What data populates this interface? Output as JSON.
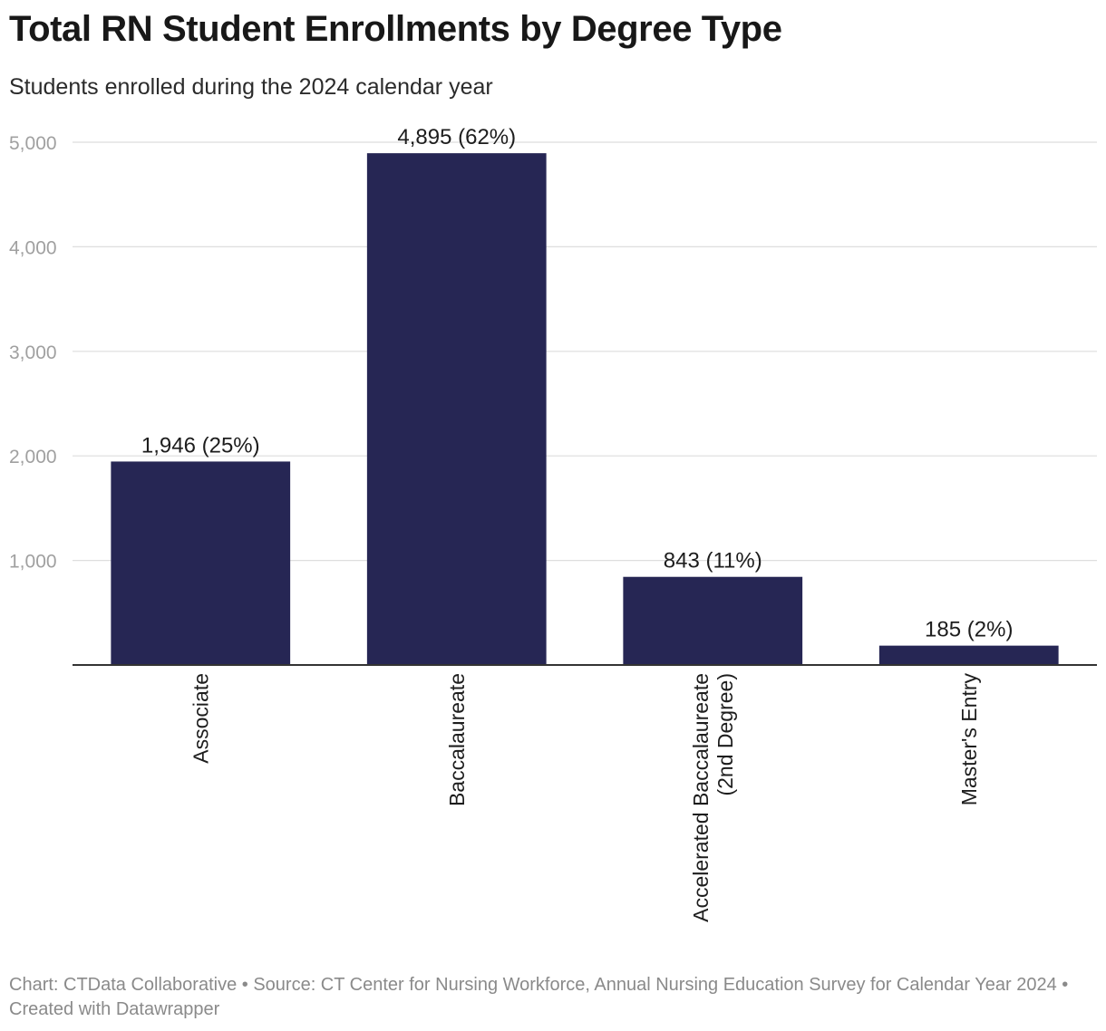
{
  "header": {
    "title": "Total RN Student Enrollments by Degree Type",
    "subtitle": "Students enrolled during the 2024 calendar year"
  },
  "footer": {
    "text": "Chart: CTData Collaborative • Source: CT Center for Nursing Workforce, Annual Nursing Education Survey for Calendar Year 2024 • Created with Datawrapper"
  },
  "chart_data": {
    "type": "bar",
    "title": "Total RN Student Enrollments by Degree Type",
    "subtitle": "Students enrolled during the 2024 calendar year",
    "categories": [
      "Associate",
      "Baccalaureate",
      "Accelerated Baccalaureate (2nd Degree)",
      "Master's Entry"
    ],
    "category_label_lines": [
      [
        "Associate"
      ],
      [
        "Baccalaureate"
      ],
      [
        "Accelerated Baccalaureate",
        "(2nd Degree)"
      ],
      [
        "Master's Entry"
      ]
    ],
    "values": [
      1946,
      4895,
      843,
      185
    ],
    "data_labels": [
      "1,946 (25%)",
      "4,895 (62%)",
      "843 (11%)",
      "185 (2%)"
    ],
    "ylim": [
      0,
      5000
    ],
    "yticks": [
      1000,
      2000,
      3000,
      4000,
      5000
    ],
    "ytick_labels": [
      "1,000",
      "2,000",
      "3,000",
      "4,000",
      "5,000"
    ],
    "grid": true,
    "bar_color": "#262654",
    "xlabel": "",
    "ylabel": ""
  }
}
